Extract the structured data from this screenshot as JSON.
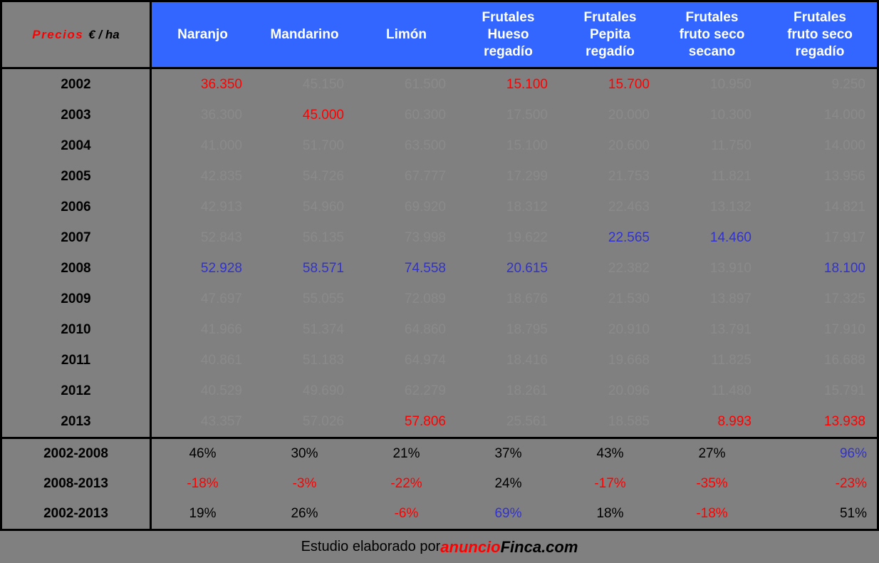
{
  "colors": {
    "background": "#808080",
    "header_blue": "#3366FF",
    "highlight_red": "#FF0000",
    "highlight_blue": "#3232CD",
    "hidden_value_gray": "#8A8A8A",
    "text_black": "#000000",
    "border_black": "#000000",
    "header_text_white": "#FFFFFF"
  },
  "table": {
    "corner": {
      "title": "Precios",
      "unit": "€ / ha"
    },
    "columns": [
      {
        "id": "naranjo",
        "label": "Naranjo"
      },
      {
        "id": "mandarino",
        "label": "Mandarino"
      },
      {
        "id": "limon",
        "label": "Limón"
      },
      {
        "id": "frutales-hueso-regadio",
        "label": "Frutales\nHueso\nregadío"
      },
      {
        "id": "frutales-pepita-regadio",
        "label": "Frutales\nPepita\nregadío"
      },
      {
        "id": "frutales-fruto-seco-secano",
        "label": "Frutales\nfruto seco\nsecano"
      },
      {
        "id": "frutales-fruto-seco-regadio",
        "label": "Frutales\nfruto seco\nregadío"
      }
    ],
    "rows": [
      {
        "label": "2002",
        "cells": [
          {
            "v": "36.350",
            "c": "red"
          },
          {
            "v": "45.150",
            "c": "hidden"
          },
          {
            "v": "61.500",
            "c": "hidden"
          },
          {
            "v": "15.100",
            "c": "red"
          },
          {
            "v": "15.700",
            "c": "red"
          },
          {
            "v": "10.950",
            "c": "hidden"
          },
          {
            "v": "9.250",
            "c": "hidden"
          }
        ]
      },
      {
        "label": "2003",
        "cells": [
          {
            "v": "36.300",
            "c": "hidden"
          },
          {
            "v": "45.000",
            "c": "red"
          },
          {
            "v": "60.300",
            "c": "hidden"
          },
          {
            "v": "17.500",
            "c": "hidden"
          },
          {
            "v": "20.000",
            "c": "hidden"
          },
          {
            "v": "10.300",
            "c": "hidden"
          },
          {
            "v": "14.000",
            "c": "hidden"
          }
        ]
      },
      {
        "label": "2004",
        "cells": [
          {
            "v": "41.000",
            "c": "hidden"
          },
          {
            "v": "51.700",
            "c": "hidden"
          },
          {
            "v": "63.500",
            "c": "hidden"
          },
          {
            "v": "15.100",
            "c": "hidden"
          },
          {
            "v": "20.600",
            "c": "hidden"
          },
          {
            "v": "11.750",
            "c": "hidden"
          },
          {
            "v": "14.000",
            "c": "hidden"
          }
        ]
      },
      {
        "label": "2005",
        "cells": [
          {
            "v": "42.835",
            "c": "hidden"
          },
          {
            "v": "54.726",
            "c": "hidden"
          },
          {
            "v": "67.777",
            "c": "hidden"
          },
          {
            "v": "17.299",
            "c": "hidden"
          },
          {
            "v": "21.753",
            "c": "hidden"
          },
          {
            "v": "11.821",
            "c": "hidden"
          },
          {
            "v": "13.956",
            "c": "hidden"
          }
        ]
      },
      {
        "label": "2006",
        "cells": [
          {
            "v": "42.913",
            "c": "hidden"
          },
          {
            "v": "54.960",
            "c": "hidden"
          },
          {
            "v": "69.920",
            "c": "hidden"
          },
          {
            "v": "18.312",
            "c": "hidden"
          },
          {
            "v": "22.463",
            "c": "hidden"
          },
          {
            "v": "13.132",
            "c": "hidden"
          },
          {
            "v": "14.821",
            "c": "hidden"
          }
        ]
      },
      {
        "label": "2007",
        "cells": [
          {
            "v": "52.843",
            "c": "hidden"
          },
          {
            "v": "56.135",
            "c": "hidden"
          },
          {
            "v": "73.998",
            "c": "hidden"
          },
          {
            "v": "19.622",
            "c": "hidden"
          },
          {
            "v": "22.565",
            "c": "blue"
          },
          {
            "v": "14.460",
            "c": "blue"
          },
          {
            "v": "17.917",
            "c": "hidden"
          }
        ]
      },
      {
        "label": "2008",
        "cells": [
          {
            "v": "52.928",
            "c": "blue"
          },
          {
            "v": "58.571",
            "c": "blue"
          },
          {
            "v": "74.558",
            "c": "blue"
          },
          {
            "v": "20.615",
            "c": "blue"
          },
          {
            "v": "22.382",
            "c": "hidden"
          },
          {
            "v": "13.910",
            "c": "hidden"
          },
          {
            "v": "18.100",
            "c": "blue"
          }
        ]
      },
      {
        "label": "2009",
        "cells": [
          {
            "v": "47.697",
            "c": "hidden"
          },
          {
            "v": "55.055",
            "c": "hidden"
          },
          {
            "v": "72.089",
            "c": "hidden"
          },
          {
            "v": "18.676",
            "c": "hidden"
          },
          {
            "v": "21.530",
            "c": "hidden"
          },
          {
            "v": "13.897",
            "c": "hidden"
          },
          {
            "v": "17.325",
            "c": "hidden"
          }
        ]
      },
      {
        "label": "2010",
        "cells": [
          {
            "v": "41.966",
            "c": "hidden"
          },
          {
            "v": "51.374",
            "c": "hidden"
          },
          {
            "v": "64.860",
            "c": "hidden"
          },
          {
            "v": "18.795",
            "c": "hidden"
          },
          {
            "v": "20.910",
            "c": "hidden"
          },
          {
            "v": "13.791",
            "c": "hidden"
          },
          {
            "v": "17.910",
            "c": "hidden"
          }
        ]
      },
      {
        "label": "2011",
        "cells": [
          {
            "v": "40.861",
            "c": "hidden"
          },
          {
            "v": "51.183",
            "c": "hidden"
          },
          {
            "v": "64.974",
            "c": "hidden"
          },
          {
            "v": "18.416",
            "c": "hidden"
          },
          {
            "v": "19.668",
            "c": "hidden"
          },
          {
            "v": "11.825",
            "c": "hidden"
          },
          {
            "v": "16.688",
            "c": "hidden"
          }
        ]
      },
      {
        "label": "2012",
        "cells": [
          {
            "v": "40.529",
            "c": "hidden"
          },
          {
            "v": "49.690",
            "c": "hidden"
          },
          {
            "v": "62.279",
            "c": "hidden"
          },
          {
            "v": "18.261",
            "c": "hidden"
          },
          {
            "v": "20.096",
            "c": "hidden"
          },
          {
            "v": "11.480",
            "c": "hidden"
          },
          {
            "v": "15.791",
            "c": "hidden"
          }
        ]
      },
      {
        "label": "2013",
        "cells": [
          {
            "v": "43.357",
            "c": "hidden"
          },
          {
            "v": "57.026",
            "c": "hidden"
          },
          {
            "v": "57.806",
            "c": "red"
          },
          {
            "v": "25.561",
            "c": "hidden"
          },
          {
            "v": "18.585",
            "c": "hidden"
          },
          {
            "v": "8.993",
            "c": "red"
          },
          {
            "v": "13.938",
            "c": "red"
          }
        ]
      }
    ],
    "summary_rows": [
      {
        "label": "2002-2008",
        "cells": [
          {
            "v": "46%",
            "c": "black"
          },
          {
            "v": "30%",
            "c": "black"
          },
          {
            "v": "21%",
            "c": "black"
          },
          {
            "v": "37%",
            "c": "black"
          },
          {
            "v": "43%",
            "c": "black"
          },
          {
            "v": "27%",
            "c": "black"
          },
          {
            "v": "96%",
            "c": "blue"
          }
        ]
      },
      {
        "label": "2008-2013",
        "cells": [
          {
            "v": "-18%",
            "c": "red"
          },
          {
            "v": "-3%",
            "c": "red"
          },
          {
            "v": "-22%",
            "c": "red"
          },
          {
            "v": "24%",
            "c": "black"
          },
          {
            "v": "-17%",
            "c": "red"
          },
          {
            "v": "-35%",
            "c": "red"
          },
          {
            "v": "-23%",
            "c": "red"
          }
        ]
      },
      {
        "label": "2002-2013",
        "cells": [
          {
            "v": "19%",
            "c": "black"
          },
          {
            "v": "26%",
            "c": "black"
          },
          {
            "v": "-6%",
            "c": "red"
          },
          {
            "v": "69%",
            "c": "blue"
          },
          {
            "v": "18%",
            "c": "black"
          },
          {
            "v": "-18%",
            "c": "red"
          },
          {
            "v": "51%",
            "c": "black"
          }
        ]
      }
    ]
  },
  "footer": {
    "prefix": "Estudio elaborado por ",
    "brand_red": "anuncio",
    "brand_black": "Finca.com"
  },
  "chart_data": {
    "type": "table",
    "title": "Precios € / ha",
    "row_labels": [
      "2002",
      "2003",
      "2004",
      "2005",
      "2006",
      "2007",
      "2008",
      "2009",
      "2010",
      "2011",
      "2012",
      "2013",
      "2002-2008",
      "2008-2013",
      "2002-2013"
    ],
    "columns": [
      "Naranjo",
      "Mandarino",
      "Limón",
      "Frutales Hueso regadío",
      "Frutales Pepita regadío",
      "Frutales fruto seco secano",
      "Frutales fruto seco regadío"
    ],
    "series": [
      {
        "name": "Naranjo",
        "values": [
          "36.350",
          "36.300",
          "41.000",
          "42.835",
          "42.913",
          "52.843",
          "52.928",
          "47.697",
          "41.966",
          "40.861",
          "40.529",
          "43.357"
        ],
        "changes": [
          "46%",
          "-18%",
          "19%"
        ]
      },
      {
        "name": "Mandarino",
        "values": [
          "45.150",
          "45.000",
          "51.700",
          "54.726",
          "54.960",
          "56.135",
          "58.571",
          "55.055",
          "51.374",
          "51.183",
          "49.690",
          "57.026"
        ],
        "changes": [
          "30%",
          "-3%",
          "26%"
        ]
      },
      {
        "name": "Limón",
        "values": [
          "61.500",
          "60.300",
          "63.500",
          "67.777",
          "69.920",
          "73.998",
          "74.558",
          "72.089",
          "64.860",
          "64.974",
          "62.279",
          "57.806"
        ],
        "changes": [
          "21%",
          "-22%",
          "-6%"
        ]
      },
      {
        "name": "Frutales Hueso regadío",
        "values": [
          "15.100",
          "17.500",
          "15.100",
          "17.299",
          "18.312",
          "19.622",
          "20.615",
          "18.676",
          "18.795",
          "18.416",
          "18.261",
          "25.561"
        ],
        "changes": [
          "37%",
          "24%",
          "69%"
        ]
      },
      {
        "name": "Frutales Pepita regadío",
        "values": [
          "15.700",
          "20.000",
          "20.600",
          "21.753",
          "22.463",
          "22.565",
          "22.382",
          "21.530",
          "20.910",
          "19.668",
          "20.096",
          "18.585"
        ],
        "changes": [
          "43%",
          "-17%",
          "18%"
        ]
      },
      {
        "name": "Frutales fruto seco secano",
        "values": [
          "10.950",
          "10.300",
          "11.750",
          "11.821",
          "13.132",
          "14.460",
          "13.910",
          "13.897",
          "13.791",
          "11.825",
          "11.480",
          "8.993"
        ],
        "changes": [
          "27%",
          "-35%",
          "-18%"
        ]
      },
      {
        "name": "Frutales fruto seco regadío",
        "values": [
          "9.250",
          "14.000",
          "14.000",
          "13.956",
          "14.821",
          "17.917",
          "18.100",
          "17.325",
          "17.910",
          "16.688",
          "15.791",
          "13.938"
        ],
        "changes": [
          "96%",
          "-23%",
          "51%"
        ]
      }
    ]
  }
}
